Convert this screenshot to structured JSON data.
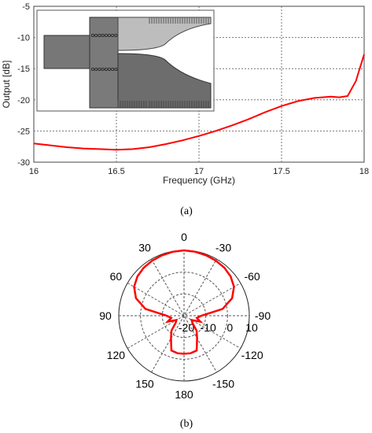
{
  "chart_data": [
    {
      "type": "line",
      "title": "",
      "xlabel": "Frequency (GHz)",
      "ylabel": "Output [dB]",
      "xlim": [
        16,
        18
      ],
      "ylim": [
        -30,
        -5
      ],
      "xticks": [
        "16",
        "16.5",
        "17",
        "17.5",
        "18"
      ],
      "yticks": [
        "-5",
        "-10",
        "-15",
        "-20",
        "-25",
        "-30"
      ],
      "grid": true,
      "series": [
        {
          "color": "#ff0000",
          "x": [
            16.0,
            16.1,
            16.2,
            16.3,
            16.4,
            16.5,
            16.6,
            16.7,
            16.8,
            16.9,
            17.0,
            17.1,
            17.2,
            17.3,
            17.4,
            17.5,
            17.6,
            17.7,
            17.8,
            17.85,
            17.9,
            17.95,
            18.0
          ],
          "y": [
            -27.0,
            -27.3,
            -27.6,
            -27.8,
            -27.9,
            -28.0,
            -27.9,
            -27.6,
            -27.1,
            -26.5,
            -25.8,
            -25.0,
            -24.1,
            -23.1,
            -22.0,
            -21.0,
            -20.2,
            -19.7,
            -19.5,
            -19.6,
            -19.4,
            -17.0,
            -12.7
          ]
        }
      ],
      "inset": "device layout illustration",
      "caption": "(a)"
    },
    {
      "type": "polar",
      "angle_ticks": [
        "0",
        "-30",
        "-60",
        "-90",
        "-120",
        "-150",
        "180",
        "150",
        "120",
        "90",
        "60",
        "30"
      ],
      "radial_ticks": [
        "-20",
        "-10",
        "0",
        "10"
      ],
      "rlim": [
        -20,
        10
      ],
      "series": [
        {
          "color": "#ff0000",
          "angles_deg": [
            0,
            10,
            20,
            30,
            40,
            50,
            60,
            70,
            80,
            90,
            100,
            110,
            120,
            130,
            140,
            150,
            160,
            170,
            180,
            190,
            200,
            210,
            220,
            230,
            240,
            250,
            260,
            270,
            280,
            290,
            300,
            310,
            320,
            330,
            340,
            350
          ],
          "values_db": [
            10,
            9.8,
            9.5,
            9.2,
            8.8,
            8.0,
            6.5,
            3.5,
            -2.0,
            -12.0,
            -14.0,
            -12.0,
            -16.0,
            -15.0,
            -11.0,
            -8.0,
            -3.0,
            -2.5,
            -2.5,
            -2.5,
            -3.0,
            -8.0,
            -11.0,
            -15.0,
            -16.0,
            -12.0,
            -14.0,
            -12.0,
            -2.0,
            3.5,
            6.5,
            8.0,
            8.8,
            9.2,
            9.5,
            9.8
          ]
        }
      ],
      "caption": "(b)"
    }
  ]
}
